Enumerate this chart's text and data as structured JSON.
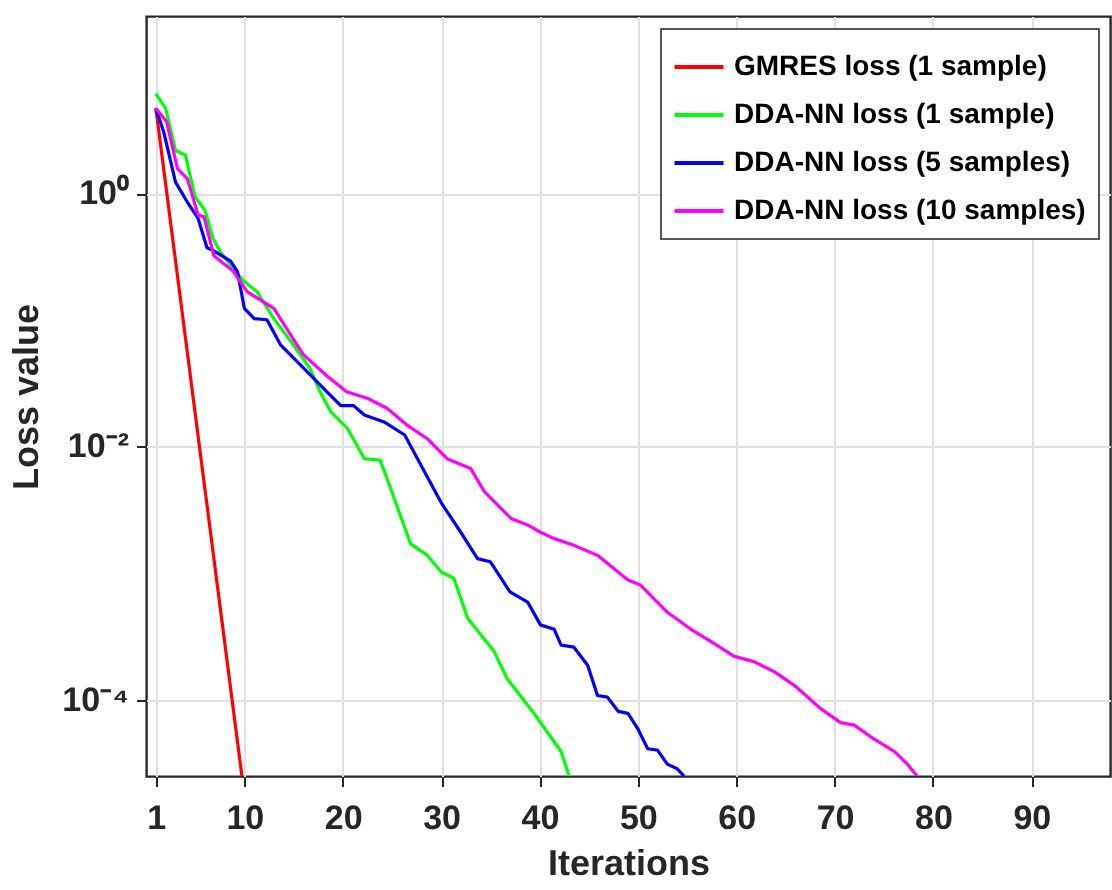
{
  "chart_data": {
    "type": "line",
    "xlabel": "Iterations",
    "ylabel": "Loss value",
    "log": "y",
    "grid": true,
    "legend": "top right",
    "line_style": "solid",
    "xlim": [
      0,
      98
    ],
    "xticks": [
      1,
      10,
      20,
      30,
      40,
      50,
      60,
      70,
      80,
      90
    ],
    "ylim": [
      2.5e-05,
      25
    ],
    "yticks": [
      {
        "value": 1,
        "label": "10⁰"
      },
      {
        "value": 0.01,
        "label": "10⁻²"
      },
      {
        "value": 0.0001,
        "label": "10⁻⁴"
      }
    ],
    "series": [
      {
        "name": "GMRES loss (1 sample)",
        "color": "#ff0000",
        "x": [
          1,
          9.75
        ],
        "values": [
          4.7,
          2.5e-05
        ]
      },
      {
        "name": "DDA-NN loss (1 sample)",
        "color": "#00ff00",
        "x": [
          1,
          2,
          3,
          4,
          5,
          6,
          6.8,
          7.6,
          8.9,
          10,
          11.3,
          13,
          15,
          16.7,
          17.7,
          18.8,
          20.5,
          22.2,
          23.8,
          24.5,
          26.9,
          28.6,
          30,
          31.3,
          32.7,
          35.4,
          36.7,
          39.4,
          42.2,
          43
        ],
        "values": [
          6.1,
          4.66,
          2.17,
          2.0,
          0.93,
          0.73,
          0.44,
          0.34,
          0.25,
          0.2,
          0.166,
          0.102,
          0.063,
          0.041,
          0.027,
          0.0187,
          0.0138,
          0.008,
          0.0078,
          0.0056,
          0.0017,
          0.00138,
          0.00102,
          0.00091,
          0.00044,
          0.00024,
          0.000147,
          7.9e-05,
          3.9e-05,
          2.5e-05
        ]
      },
      {
        "name": "DDA-NN loss (5 samples)",
        "color": "#0000ff",
        "x": [
          1,
          1.8,
          3,
          4.2,
          5.3,
          6.2,
          6.9,
          8.6,
          9.3,
          10,
          11,
          12.3,
          13.7,
          15.7,
          18.4,
          19.8,
          21.1,
          22.2,
          24.2,
          26.3,
          27.6,
          30,
          32,
          33.7,
          35,
          37,
          38.8,
          40.1,
          41.5,
          42.2,
          43.5,
          44.9,
          45.9,
          46.9,
          48,
          49,
          50,
          51,
          52,
          53,
          54,
          54.7
        ],
        "values": [
          4.66,
          3.04,
          1.22,
          0.85,
          0.63,
          0.37,
          0.35,
          0.29,
          0.24,
          0.123,
          0.102,
          0.1,
          0.063,
          0.044,
          0.027,
          0.021,
          0.021,
          0.0177,
          0.0156,
          0.0123,
          0.008,
          0.0036,
          0.0021,
          0.0013,
          0.00123,
          0.00071,
          0.00059,
          0.00039,
          0.00036,
          0.00027,
          0.00026,
          0.000187,
          0.000108,
          0.000105,
          8.1e-05,
          7.8e-05,
          5.9e-05,
          4.1e-05,
          4e-05,
          3.1e-05,
          2.85e-05,
          2.5e-05
        ]
      },
      {
        "name": "DDA-NN loss (10 samples)",
        "color": "#ff00ff",
        "x": [
          1,
          2.1,
          3.2,
          4.2,
          5.3,
          5.9,
          6.9,
          8.9,
          10.3,
          13,
          14.7,
          16,
          18.4,
          20.4,
          22.5,
          24.5,
          26.5,
          28.6,
          30.6,
          33,
          34.4,
          37.1,
          38.8,
          40.1,
          41.5,
          43.5,
          45.9,
          49,
          50.3,
          53,
          55.4,
          57.7,
          59.8,
          61.8,
          63.9,
          65.9,
          68.6,
          70.6,
          72,
          74,
          76.1,
          77.4,
          78.4
        ],
        "values": [
          4.66,
          3.67,
          1.56,
          1.3,
          0.67,
          0.65,
          0.32,
          0.24,
          0.166,
          0.123,
          0.076,
          0.053,
          0.036,
          0.027,
          0.024,
          0.02,
          0.0148,
          0.0115,
          0.008,
          0.0067,
          0.0044,
          0.0027,
          0.0024,
          0.0021,
          0.00187,
          0.00166,
          0.00138,
          0.00088,
          0.0008,
          0.00049,
          0.00036,
          0.00028,
          0.00022,
          0.0002,
          0.000166,
          0.00013,
          8.5e-05,
          6.6e-05,
          6.3e-05,
          4.9e-05,
          3.9e-05,
          3.1e-05,
          2.5e-05
        ]
      }
    ]
  }
}
